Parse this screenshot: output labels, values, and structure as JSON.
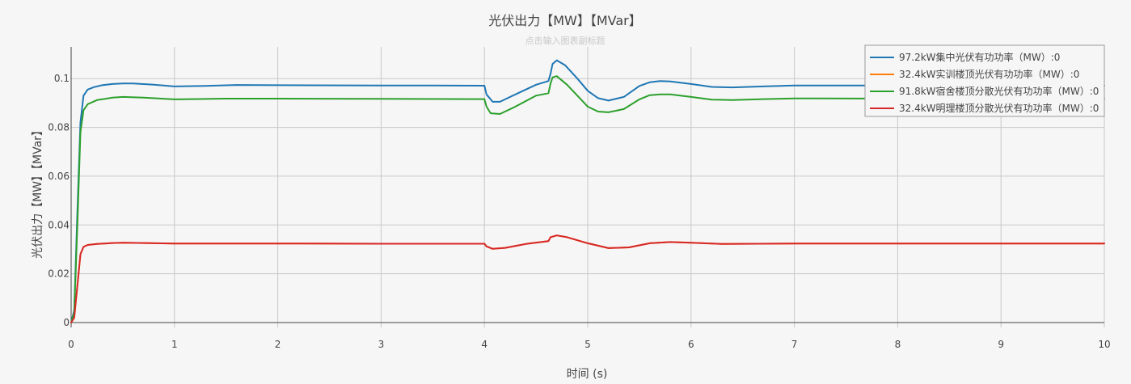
{
  "chart_data": {
    "type": "line",
    "title": "光伏出力【MW】【MVar】",
    "subtitle": "点击输入图表副标题",
    "xlabel": "时间 (s)",
    "ylabel": "光伏出力【MW】【MVar】",
    "xlim": [
      0,
      10
    ],
    "ylim": [
      -0.002,
      0.113
    ],
    "x_ticks": [
      0,
      1,
      2,
      3,
      4,
      5,
      6,
      7,
      8,
      9,
      10
    ],
    "x_tick_labels": [
      "0",
      "1",
      "2",
      "3",
      "4",
      "5",
      "6",
      "7",
      "8",
      "9",
      "10"
    ],
    "y_ticks": [
      0,
      0.02,
      0.04,
      0.06,
      0.08,
      0.1
    ],
    "y_tick_labels": [
      "0",
      "0.02",
      "0.04",
      "0.06",
      "0.08",
      "0.1"
    ],
    "grid": true,
    "legend_position": "top-right",
    "series": [
      {
        "name": "97.2kW集中光伏有功功率（MW）:0",
        "color": "#1f77b4",
        "x": [
          0,
          0.03,
          0.06,
          0.09,
          0.12,
          0.16,
          0.22,
          0.3,
          0.4,
          0.5,
          0.6,
          0.8,
          1.0,
          1.3,
          1.6,
          2.0,
          3.0,
          3.5,
          4.0,
          4.02,
          4.08,
          4.15,
          4.3,
          4.5,
          4.62,
          4.64,
          4.66,
          4.7,
          4.78,
          4.9,
          5.0,
          5.1,
          5.2,
          5.35,
          5.5,
          5.6,
          5.7,
          5.8,
          6.0,
          6.2,
          6.4,
          6.7,
          7.0,
          7.5,
          8.0,
          9.0,
          10.0
        ],
        "y": [
          0,
          0.005,
          0.045,
          0.082,
          0.093,
          0.0955,
          0.0965,
          0.0973,
          0.0978,
          0.098,
          0.098,
          0.0975,
          0.0968,
          0.097,
          0.0974,
          0.0973,
          0.0972,
          0.0972,
          0.0971,
          0.0935,
          0.0905,
          0.0905,
          0.0935,
          0.0975,
          0.099,
          0.102,
          0.106,
          0.1075,
          0.1055,
          0.1,
          0.095,
          0.092,
          0.091,
          0.0925,
          0.097,
          0.0985,
          0.099,
          0.0988,
          0.0978,
          0.0966,
          0.0964,
          0.0968,
          0.0972,
          0.0972,
          0.0972,
          0.0972,
          0.0972
        ]
      },
      {
        "name": "32.4kW实训楼顶光伏有功功率（MW）:0",
        "color": "#ff7f0e",
        "x": [
          0,
          0.03,
          0.06,
          0.09,
          0.12,
          0.16,
          0.25,
          0.4,
          0.5,
          0.7,
          1.0,
          1.5,
          2.0,
          3.0,
          4.0,
          4.02,
          4.08,
          4.2,
          4.4,
          4.62,
          4.64,
          4.7,
          4.8,
          5.0,
          5.2,
          5.4,
          5.6,
          5.8,
          6.0,
          6.3,
          7.0,
          8.0,
          9.0,
          10.0
        ],
        "y": [
          0,
          0.002,
          0.015,
          0.028,
          0.031,
          0.0318,
          0.0322,
          0.0326,
          0.0327,
          0.0326,
          0.0324,
          0.0324,
          0.0324,
          0.0323,
          0.0323,
          0.0312,
          0.0302,
          0.0306,
          0.0322,
          0.0334,
          0.035,
          0.0357,
          0.035,
          0.0325,
          0.0305,
          0.0308,
          0.0325,
          0.033,
          0.0327,
          0.0322,
          0.0324,
          0.0324,
          0.0324,
          0.0324
        ]
      },
      {
        "name": "91.8kW宿舍楼顶分散光伏有功功率（MW）:0",
        "color": "#2ca02c",
        "x": [
          0,
          0.03,
          0.06,
          0.09,
          0.12,
          0.16,
          0.25,
          0.4,
          0.5,
          0.7,
          1.0,
          1.5,
          2.0,
          3.0,
          4.0,
          4.02,
          4.06,
          4.15,
          4.3,
          4.5,
          4.62,
          4.64,
          4.66,
          4.7,
          4.8,
          4.9,
          5.0,
          5.1,
          5.2,
          5.35,
          5.5,
          5.6,
          5.7,
          5.8,
          6.0,
          6.2,
          6.4,
          6.7,
          7.0,
          8.0,
          9.0,
          10.0
        ],
        "y": [
          0,
          0.004,
          0.04,
          0.078,
          0.087,
          0.0895,
          0.0912,
          0.0922,
          0.0925,
          0.0922,
          0.0915,
          0.0918,
          0.0918,
          0.0917,
          0.0916,
          0.0885,
          0.0858,
          0.0855,
          0.0885,
          0.093,
          0.094,
          0.098,
          0.1005,
          0.101,
          0.0975,
          0.093,
          0.0885,
          0.0865,
          0.0862,
          0.0875,
          0.0915,
          0.0932,
          0.0935,
          0.0935,
          0.0925,
          0.0914,
          0.0912,
          0.0916,
          0.0919,
          0.0918,
          0.0918,
          0.0918
        ]
      },
      {
        "name": "32.4kW明理楼顶分散光伏有功功率（MW）:0",
        "color": "#d62728",
        "x": [
          0,
          0.03,
          0.06,
          0.09,
          0.12,
          0.16,
          0.25,
          0.4,
          0.5,
          0.7,
          1.0,
          1.5,
          2.0,
          3.0,
          4.0,
          4.02,
          4.08,
          4.2,
          4.4,
          4.62,
          4.64,
          4.7,
          4.8,
          5.0,
          5.2,
          5.4,
          5.6,
          5.8,
          6.0,
          6.3,
          7.0,
          8.0,
          9.0,
          10.0
        ],
        "y": [
          0,
          0.002,
          0.015,
          0.028,
          0.031,
          0.0318,
          0.0322,
          0.0326,
          0.0327,
          0.0326,
          0.0324,
          0.0324,
          0.0324,
          0.0323,
          0.0323,
          0.0312,
          0.0302,
          0.0306,
          0.0322,
          0.0334,
          0.035,
          0.0357,
          0.035,
          0.0325,
          0.0305,
          0.0308,
          0.0325,
          0.033,
          0.0327,
          0.0322,
          0.0324,
          0.0324,
          0.0324,
          0.0324
        ]
      }
    ]
  }
}
